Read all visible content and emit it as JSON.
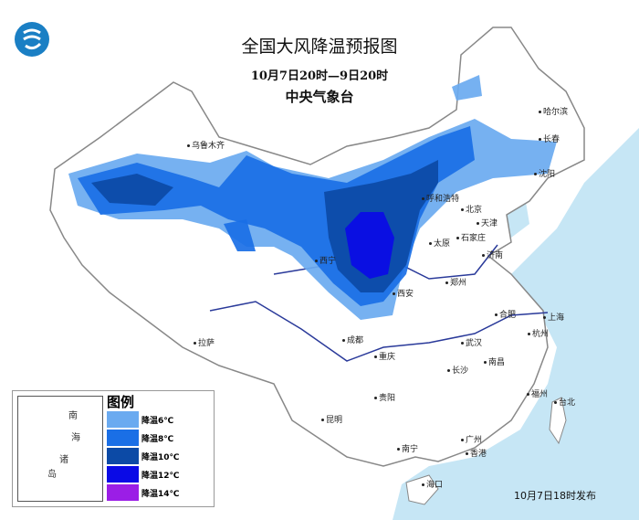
{
  "header": {
    "title": "全国大风降温预报图",
    "period": "10月7日20时—9日20时",
    "issuer": "中央气象台"
  },
  "logo": {
    "icon": "cma-logo-icon",
    "color": "#1a7fc4"
  },
  "cities": [
    "乌鲁木齐",
    "哈尔滨",
    "长春",
    "沈阳",
    "呼和浩特",
    "北京",
    "天津",
    "石家庄",
    "太原",
    "济南",
    "郑州",
    "西安",
    "西宁",
    "拉萨",
    "成都",
    "重庆",
    "贵阳",
    "昆明",
    "南宁",
    "广州",
    "香港",
    "海口",
    "长沙",
    "武汉",
    "南昌",
    "合肥",
    "上海",
    "杭州",
    "福州",
    "台北"
  ],
  "inset": {
    "labels": [
      "南",
      "海",
      "诸",
      "岛"
    ]
  },
  "legend": {
    "title": "图例",
    "items": [
      {
        "label": "降温6℃",
        "color": "#6aaaf0"
      },
      {
        "label": "降温8℃",
        "color": "#1a6fe6"
      },
      {
        "label": "降温10℃",
        "color": "#0c4aa6"
      },
      {
        "label": "降温12℃",
        "color": "#0a0ae6"
      },
      {
        "label": "降温14℃",
        "color": "#9b1ee6"
      }
    ]
  },
  "footer": "10月7日18时发布",
  "colors": {
    "sea": "#c6e6f5",
    "border": "#888888",
    "river": "#2a3a9a"
  }
}
